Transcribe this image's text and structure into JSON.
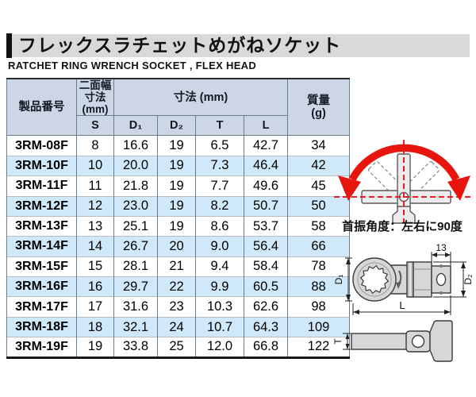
{
  "page": {
    "title_jp": "フレックスラチェットめがねソケット",
    "title_en": "RATCHET RING WRENCH SOCKET , FLEX HEAD"
  },
  "table": {
    "header": {
      "product_no": "製品番号",
      "width_across_flats": "二面幅\n寸法\n(mm)",
      "dimensions": "寸法 (mm)",
      "mass": "質量\n(g)",
      "sub": [
        "S",
        "D₁",
        "D₂",
        "T",
        "L"
      ]
    },
    "rows": [
      [
        "3RM-08F",
        "8",
        "16.6",
        "19",
        "6.5",
        "42.7",
        "34"
      ],
      [
        "3RM-10F",
        "10",
        "20.0",
        "19",
        "7.3",
        "46.4",
        "42"
      ],
      [
        "3RM-11F",
        "11",
        "21.8",
        "19",
        "7.7",
        "49.6",
        "45"
      ],
      [
        "3RM-12F",
        "12",
        "23.0",
        "19",
        "8.2",
        "50.7",
        "50"
      ],
      [
        "3RM-13F",
        "13",
        "25.1",
        "19",
        "8.6",
        "53.7",
        "58"
      ],
      [
        "3RM-14F",
        "14",
        "26.7",
        "20",
        "9.0",
        "56.4",
        "66"
      ],
      [
        "3RM-15F",
        "15",
        "28.1",
        "21",
        "9.4",
        "58.4",
        "78"
      ],
      [
        "3RM-16F",
        "16",
        "29.7",
        "22",
        "9.9",
        "60.5",
        "88"
      ],
      [
        "3RM-17F",
        "17",
        "31.6",
        "23",
        "10.3",
        "62.6",
        "98"
      ],
      [
        "3RM-18F",
        "18",
        "32.1",
        "24",
        "10.7",
        "64.3",
        "109"
      ],
      [
        "3RM-19F",
        "19",
        "33.8",
        "25",
        "12.0",
        "66.8",
        "122"
      ]
    ]
  },
  "swing_diagram": {
    "caption": "首振角度：左右に90度"
  },
  "drawing": {
    "dim_13": "13",
    "dim_d1": "D₁",
    "dim_d2": "D₂",
    "dim_l": "L",
    "dim_t": "T"
  },
  "colors": {
    "accent_red": "#e8150f",
    "header_blue": "#ccd6e4",
    "stripe_blue": "#cfe9fa",
    "title_gray": "#d9d9d9",
    "drawing_gray": "#d7d7da"
  }
}
